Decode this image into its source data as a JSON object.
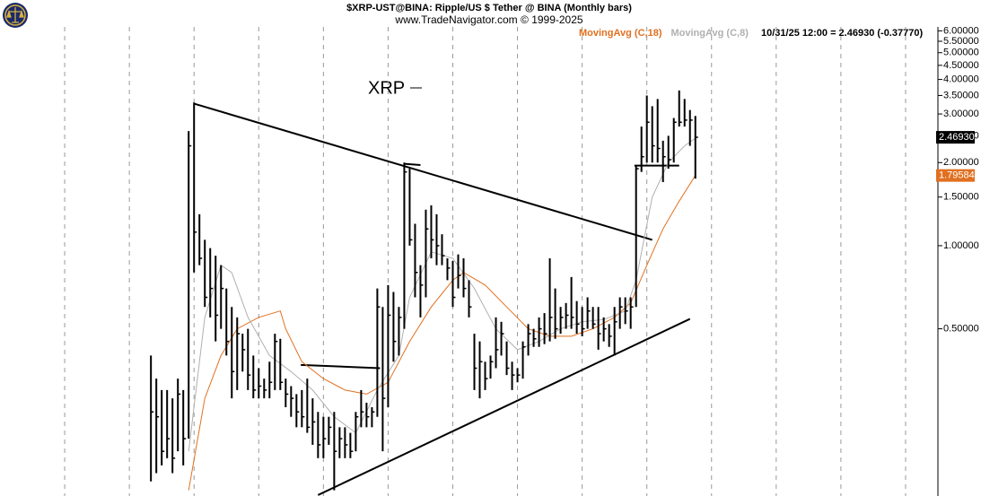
{
  "chart_data": {
    "type": "ohlc",
    "title": "$XRP-UST@BINA:  Ripple/US $ Tether @ BINA  (Monthly bars)",
    "subtitle": "www.TradeNavigator.com © 1999-2025",
    "status": "10/31/25 12:00 = 2.46930 (-0.37770)",
    "annotation": "XRP",
    "log_scale": true,
    "grid": true,
    "ylim": [
      0.124,
      6.2
    ],
    "yticks": [
      {
        "value": 0.5,
        "label": "0.50000"
      },
      {
        "value": 1,
        "label": "1.00000"
      },
      {
        "value": 1.5,
        "label": "1.50000"
      },
      {
        "value": 2,
        "label": "2.00000"
      },
      {
        "value": 2.5,
        "label": "2.50000"
      },
      {
        "value": 3,
        "label": "3.00000"
      },
      {
        "value": 3.5,
        "label": "3.50000"
      },
      {
        "value": 4,
        "label": "4.00000"
      },
      {
        "value": 4.5,
        "label": "4.50000"
      },
      {
        "value": 5,
        "label": "5.00000"
      },
      {
        "value": 5.5,
        "label": "5.50000"
      },
      {
        "value": 6,
        "label": "6.00000"
      }
    ],
    "xlim": [
      -28,
      146
    ],
    "xticks": [
      -16,
      -4,
      8,
      20,
      32,
      44,
      56,
      68,
      80,
      92,
      104,
      116,
      128,
      140
    ],
    "bars": {
      "color": "#000000",
      "last_label": "2.46930",
      "x": [
        0,
        1,
        2,
        3,
        4,
        5,
        6,
        7,
        8,
        9,
        10,
        11,
        12,
        13,
        14,
        15,
        16,
        17,
        18,
        19,
        20,
        21,
        22,
        23,
        24,
        25,
        26,
        27,
        28,
        29,
        30,
        31,
        32,
        33,
        34,
        35,
        36,
        37,
        38,
        39,
        40,
        41,
        42,
        43,
        44,
        45,
        46,
        47,
        48,
        49,
        50,
        51,
        52,
        53,
        54,
        55,
        56,
        57,
        58,
        59,
        60,
        61,
        62,
        63,
        64,
        65,
        66,
        67,
        68,
        69,
        70,
        71,
        72,
        73,
        74,
        75,
        76,
        77,
        78,
        79,
        80,
        81,
        82,
        83,
        84,
        85,
        86,
        87,
        88,
        89,
        90,
        91,
        92,
        93,
        94,
        95,
        96,
        97,
        98,
        99,
        100,
        101
      ],
      "high": [
        0.4,
        0.33,
        0.3,
        0.3,
        0.28,
        0.33,
        0.3,
        2.6,
        3.3,
        1.3,
        1.05,
        0.98,
        0.92,
        0.85,
        0.7,
        0.6,
        0.55,
        0.48,
        0.5,
        0.4,
        0.36,
        0.33,
        0.38,
        0.48,
        0.46,
        0.33,
        0.31,
        0.29,
        0.3,
        0.33,
        0.28,
        0.25,
        0.24,
        0.24,
        0.25,
        0.22,
        0.22,
        0.21,
        0.25,
        0.3,
        0.27,
        0.26,
        0.7,
        0.6,
        0.72,
        0.68,
        0.6,
        2.0,
        1.9,
        1.2,
        0.85,
        1.35,
        1.4,
        1.3,
        1.1,
        0.9,
        0.88,
        0.93,
        0.9,
        0.75,
        0.48,
        0.45,
        0.38,
        0.4,
        0.55,
        0.53,
        0.45,
        0.38,
        0.36,
        0.45,
        0.52,
        0.5,
        0.55,
        0.57,
        0.9,
        0.7,
        0.6,
        0.62,
        0.77,
        0.63,
        0.6,
        0.65,
        0.6,
        0.6,
        0.55,
        0.52,
        0.6,
        0.65,
        0.65,
        0.65,
        1.95,
        2.7,
        3.5,
        3.2,
        3.4,
        2.4,
        2.5,
        2.9,
        3.65,
        3.4,
        3.1,
        2.95
      ],
      "low": [
        0.14,
        0.15,
        0.16,
        0.17,
        0.15,
        0.18,
        0.16,
        0.2,
        0.8,
        0.85,
        0.6,
        0.55,
        0.45,
        0.5,
        0.4,
        0.28,
        0.3,
        0.35,
        0.3,
        0.28,
        0.28,
        0.28,
        0.28,
        0.3,
        0.3,
        0.26,
        0.24,
        0.22,
        0.22,
        0.21,
        0.19,
        0.17,
        0.17,
        0.19,
        0.13,
        0.17,
        0.17,
        0.17,
        0.18,
        0.22,
        0.22,
        0.22,
        0.24,
        0.18,
        0.26,
        0.38,
        0.4,
        0.5,
        1.0,
        0.65,
        0.55,
        0.65,
        0.9,
        0.85,
        0.85,
        0.75,
        0.6,
        0.7,
        0.65,
        0.55,
        0.3,
        0.28,
        0.3,
        0.33,
        0.36,
        0.4,
        0.34,
        0.3,
        0.32,
        0.33,
        0.4,
        0.43,
        0.43,
        0.44,
        0.45,
        0.46,
        0.48,
        0.5,
        0.5,
        0.48,
        0.47,
        0.5,
        0.5,
        0.42,
        0.45,
        0.43,
        0.4,
        0.5,
        0.52,
        0.5,
        0.6,
        1.85,
        2.0,
        2.0,
        2.0,
        1.7,
        1.9,
        2.0,
        2.7,
        2.7,
        2.3,
        1.75
      ],
      "close": [
        0.25,
        0.24,
        0.18,
        0.2,
        0.17,
        0.29,
        0.2,
        2.3,
        1.12,
        0.9,
        0.65,
        0.7,
        0.56,
        0.7,
        0.45,
        0.35,
        0.48,
        0.42,
        0.34,
        0.3,
        0.31,
        0.3,
        0.32,
        0.45,
        0.32,
        0.29,
        0.28,
        0.25,
        0.24,
        0.22,
        0.23,
        0.19,
        0.2,
        0.22,
        0.18,
        0.2,
        0.19,
        0.18,
        0.24,
        0.25,
        0.24,
        0.25,
        0.6,
        0.28,
        0.56,
        0.45,
        0.55,
        1.85,
        1.05,
        0.8,
        0.72,
        1.15,
        1.05,
        1.0,
        0.92,
        0.83,
        0.65,
        0.78,
        0.7,
        0.6,
        0.36,
        0.38,
        0.33,
        0.38,
        0.42,
        0.48,
        0.36,
        0.34,
        0.34,
        0.43,
        0.48,
        0.46,
        0.5,
        0.48,
        0.55,
        0.5,
        0.55,
        0.56,
        0.55,
        0.52,
        0.5,
        0.58,
        0.52,
        0.48,
        0.5,
        0.47,
        0.53,
        0.6,
        0.58,
        0.6,
        1.9,
        2.1,
        2.8,
        2.3,
        2.25,
        2.1,
        2.05,
        2.8,
        2.8,
        2.85,
        2.85,
        2.4693
      ]
    },
    "series": [
      {
        "name": "MovingAvg (C,18)",
        "color": "#e07020",
        "last_label": "1.79584",
        "x": [
          7,
          10,
          13,
          16,
          20,
          24,
          25,
          28,
          32,
          36,
          40,
          44,
          48,
          52,
          56,
          58,
          62,
          66,
          70,
          74,
          78,
          82,
          86,
          89,
          92,
          95,
          98,
          101
        ],
        "values": [
          0.13,
          0.28,
          0.4,
          0.5,
          0.55,
          0.58,
          0.5,
          0.38,
          0.33,
          0.3,
          0.29,
          0.32,
          0.45,
          0.6,
          0.75,
          0.8,
          0.72,
          0.6,
          0.5,
          0.47,
          0.47,
          0.5,
          0.55,
          0.62,
          0.85,
          1.15,
          1.45,
          1.79584
        ]
      },
      {
        "name": "MovingAvg (C,8)",
        "color": "#b0b0b0",
        "x": [
          7,
          10,
          13,
          15,
          18,
          22,
          26,
          30,
          34,
          38,
          42,
          46,
          48,
          52,
          56,
          60,
          64,
          68,
          72,
          76,
          80,
          84,
          88,
          90,
          93,
          96,
          99,
          101
        ],
        "values": [
          0.18,
          0.55,
          0.85,
          0.8,
          0.55,
          0.4,
          0.35,
          0.3,
          0.24,
          0.21,
          0.3,
          0.4,
          0.65,
          0.95,
          0.9,
          0.7,
          0.5,
          0.42,
          0.45,
          0.5,
          0.53,
          0.54,
          0.58,
          0.75,
          1.5,
          2.0,
          2.3,
          2.45
        ]
      }
    ],
    "trendlines": [
      {
        "x": [
          8,
          93
        ],
        "values": [
          3.27,
          1.05
        ]
      },
      {
        "x": [
          31,
          100
        ],
        "values": [
          0.125,
          0.543
        ]
      },
      {
        "x": [
          27.8,
          42.5
        ],
        "values": [
          0.37,
          0.36
        ]
      },
      {
        "x": [
          89.7,
          98
        ],
        "values": [
          1.95,
          1.95
        ]
      },
      {
        "x": [
          47,
          50
        ],
        "values": [
          1.98,
          1.96
        ]
      }
    ]
  }
}
